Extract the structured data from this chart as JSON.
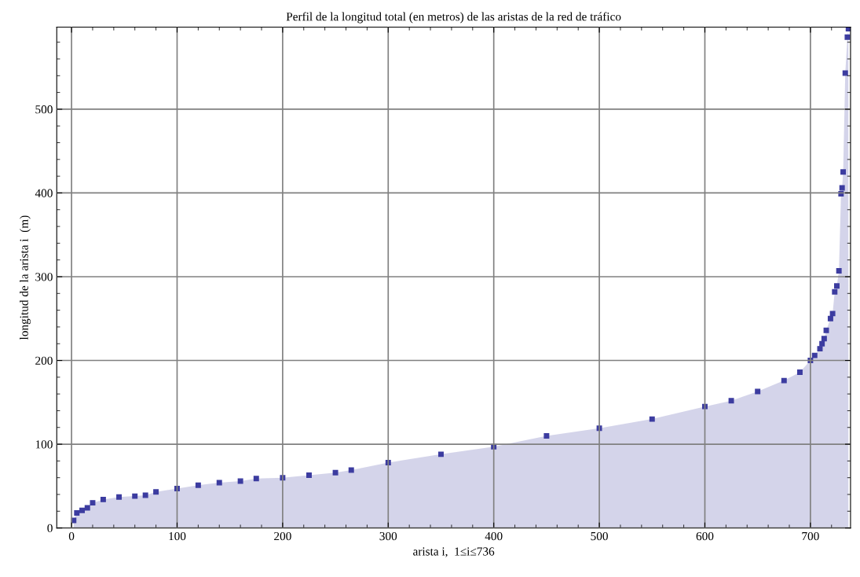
{
  "chart_data": {
    "type": "area",
    "title": "Perfil de la longitud total (en metros) de las aristas de la red de tráfico",
    "xlabel": "arista i,  1≤i≤736",
    "ylabel": "longitud de la arista i  (m)",
    "series": [
      {
        "color": "#3c3ca0",
        "x": [
          2,
          5,
          10,
          15,
          20,
          30,
          45,
          60,
          70,
          80,
          100,
          120,
          140,
          160,
          175,
          200,
          225,
          250,
          265,
          300,
          350,
          400,
          450,
          500,
          550,
          600,
          625,
          650,
          675,
          690,
          700,
          704,
          709,
          711,
          713,
          715,
          719,
          721,
          723,
          725,
          727,
          729,
          730,
          731,
          733,
          735,
          736
        ],
        "values": [
          9,
          18,
          21,
          24,
          30,
          34,
          37,
          38,
          39,
          43,
          47,
          51,
          54,
          56,
          59,
          60,
          63,
          66,
          69,
          78,
          88,
          97,
          110,
          119,
          130,
          145,
          152,
          163,
          176,
          186,
          200,
          206,
          214,
          220,
          226,
          236,
          250,
          256,
          282,
          289,
          307,
          399,
          406,
          425,
          543,
          586,
          596
        ]
      }
    ],
    "xlim": [
      -14,
      738
    ],
    "ylim": [
      0,
      598
    ],
    "xticks": [
      0,
      100,
      200,
      300,
      400,
      500,
      600,
      700
    ],
    "yticks": [
      0,
      100,
      200,
      300,
      400,
      500
    ],
    "grid": true,
    "marker": "square"
  }
}
